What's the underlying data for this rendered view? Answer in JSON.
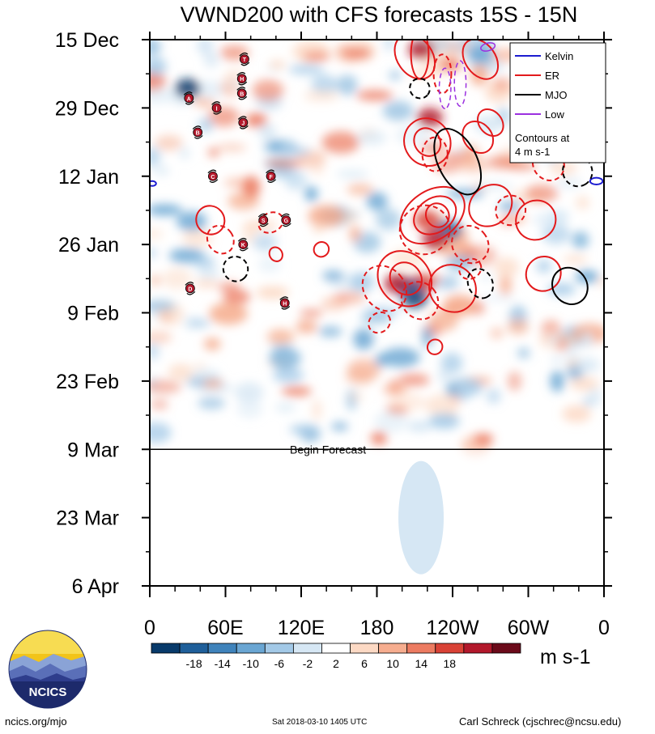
{
  "chart_data": {
    "type": "heatmap",
    "title": "VWND200 with CFS forecasts  15S - 15N",
    "y_tick_labels": [
      "15 Dec",
      "29 Dec",
      "12 Jan",
      "26 Jan",
      "9 Feb",
      "23 Feb",
      "9 Mar",
      "23 Mar",
      "6 Apr"
    ],
    "x_tick_labels": [
      "0",
      "60E",
      "120E",
      "180",
      "120W",
      "60W",
      "0"
    ],
    "x_range_deg": [
      0,
      360
    ],
    "y_range_days": [
      0,
      112
    ],
    "forecast_start_day": 84,
    "forecast_label": "Begin Forecast",
    "colorbar": {
      "tick_labels": [
        "-18",
        "-14",
        "-10",
        "-6",
        "-2",
        "2",
        "6",
        "10",
        "14",
        "18"
      ],
      "colors": [
        "#083a6a",
        "#1f5f9a",
        "#3f83bb",
        "#6aa6d3",
        "#a3c9e7",
        "#d6e7f4",
        "#ffffff",
        "#fcd9c4",
        "#f6ad8f",
        "#ec7b61",
        "#d94236",
        "#b2182b",
        "#6b0a1a"
      ],
      "units": "m s-1"
    },
    "legend": {
      "entries": [
        {
          "name": "Kelvin",
          "color": "#1c1cd0"
        },
        {
          "name": "ER",
          "color": "#e31a1c"
        },
        {
          "name": "MJO",
          "color": "#000000"
        },
        {
          "name": "Low",
          "color": "#9b30e0"
        }
      ],
      "note_line1": "Contours at",
      "note_line2": "4 m s-1"
    },
    "storm_markers": [
      {
        "label": "T",
        "lon": 75,
        "day": 4
      },
      {
        "label": "H",
        "lon": 73,
        "day": 8
      },
      {
        "label": "B",
        "lon": 73,
        "day": 11
      },
      {
        "label": "A",
        "lon": 31,
        "day": 12
      },
      {
        "label": "I",
        "lon": 53,
        "day": 14
      },
      {
        "label": "J",
        "lon": 74,
        "day": 17
      },
      {
        "label": "B",
        "lon": 38,
        "day": 19
      },
      {
        "label": "C",
        "lon": 50,
        "day": 28
      },
      {
        "label": "F",
        "lon": 96,
        "day": 28
      },
      {
        "label": "S",
        "lon": 90,
        "day": 37
      },
      {
        "label": "G",
        "lon": 108,
        "day": 37
      },
      {
        "label": "K",
        "lon": 74,
        "day": 42
      },
      {
        "label": "D",
        "lon": 32,
        "day": 51
      },
      {
        "label": "H",
        "lon": 107,
        "day": 54
      }
    ],
    "wave_contours": [
      {
        "type": "Kelvin",
        "lon": 354,
        "day": 29,
        "rx": 5,
        "ry": 0.7,
        "angle": 0,
        "dashed": false
      },
      {
        "type": "Kelvin",
        "lon": 2,
        "day": 29.5,
        "rx": 3,
        "ry": 0.5,
        "angle": 0,
        "dashed": false
      },
      {
        "type": "ER",
        "lon": 214,
        "day": 3,
        "rx": 7,
        "ry": 5,
        "angle": 0,
        "dashed": false
      },
      {
        "type": "ER",
        "lon": 210,
        "day": 3.5,
        "rx": 14,
        "ry": 5,
        "angle": -35,
        "dashed": false
      },
      {
        "type": "ER",
        "lon": 262,
        "day": 4,
        "rx": 12,
        "ry": 4.5,
        "angle": -35,
        "dashed": false
      },
      {
        "type": "ER",
        "lon": 232,
        "day": 7,
        "rx": 7,
        "ry": 4,
        "angle": 0,
        "dashed": true
      },
      {
        "type": "ER",
        "lon": 270,
        "day": 17,
        "rx": 9,
        "ry": 3,
        "angle": -40,
        "dashed": false
      },
      {
        "type": "ER",
        "lon": 220,
        "day": 21,
        "rx": 18,
        "ry": 5,
        "angle": -35,
        "dashed": false
      },
      {
        "type": "ER",
        "lon": 220,
        "day": 21,
        "rx": 10,
        "ry": 3,
        "angle": -35,
        "dashed": false
      },
      {
        "type": "ER",
        "lon": 260,
        "day": 20,
        "rx": 11,
        "ry": 3.5,
        "angle": -40,
        "dashed": false
      },
      {
        "type": "ER",
        "lon": 226,
        "day": 23.5,
        "rx": 10,
        "ry": 3.5,
        "angle": 0,
        "dashed": true
      },
      {
        "type": "ER",
        "lon": 316,
        "day": 25.5,
        "rx": 12,
        "ry": 3.5,
        "angle": -35,
        "dashed": true
      },
      {
        "type": "ER",
        "lon": 48,
        "day": 37,
        "rx": 11,
        "ry": 3,
        "angle": -40,
        "dashed": false
      },
      {
        "type": "ER",
        "lon": 56,
        "day": 41,
        "rx": 10,
        "ry": 3,
        "angle": -35,
        "dashed": true
      },
      {
        "type": "ER",
        "lon": 96,
        "day": 37.5,
        "rx": 10,
        "ry": 2,
        "angle": -25,
        "dashed": true
      },
      {
        "type": "ER",
        "lon": 100,
        "day": 44,
        "rx": 5,
        "ry": 1.5,
        "angle": -30,
        "dashed": false
      },
      {
        "type": "ER",
        "lon": 136,
        "day": 43,
        "rx": 6,
        "ry": 1.5,
        "angle": -35,
        "dashed": false
      },
      {
        "type": "ER",
        "lon": 224,
        "day": 36,
        "rx": 28,
        "ry": 5,
        "angle": -35,
        "dashed": false
      },
      {
        "type": "ER",
        "lon": 226,
        "day": 36,
        "rx": 18,
        "ry": 3.5,
        "angle": -35,
        "dashed": false
      },
      {
        "type": "ER",
        "lon": 228,
        "day": 36,
        "rx": 9,
        "ry": 2.5,
        "angle": -35,
        "dashed": false
      },
      {
        "type": "ER",
        "lon": 218,
        "day": 39,
        "rx": 20,
        "ry": 5,
        "angle": -30,
        "dashed": true
      },
      {
        "type": "ER",
        "lon": 270,
        "day": 34,
        "rx": 18,
        "ry": 4,
        "angle": -40,
        "dashed": false
      },
      {
        "type": "ER",
        "lon": 306,
        "day": 37,
        "rx": 16,
        "ry": 4,
        "angle": -40,
        "dashed": false
      },
      {
        "type": "ER",
        "lon": 254,
        "day": 42,
        "rx": 14,
        "ry": 4,
        "angle": -40,
        "dashed": true
      },
      {
        "type": "ER",
        "lon": 286,
        "day": 35,
        "rx": 12,
        "ry": 3,
        "angle": -40,
        "dashed": true
      },
      {
        "type": "ER",
        "lon": 202,
        "day": 49,
        "rx": 20,
        "ry": 6,
        "angle": -40,
        "dashed": false
      },
      {
        "type": "ER",
        "lon": 203,
        "day": 49,
        "rx": 12,
        "ry": 3.5,
        "angle": -40,
        "dashed": false
      },
      {
        "type": "ER",
        "lon": 240,
        "day": 51,
        "rx": 18,
        "ry": 5,
        "angle": -40,
        "dashed": false
      },
      {
        "type": "ER",
        "lon": 186,
        "day": 51,
        "rx": 16,
        "ry": 5,
        "angle": -40,
        "dashed": true
      },
      {
        "type": "ER",
        "lon": 214,
        "day": 53.5,
        "rx": 14,
        "ry": 4,
        "angle": -40,
        "dashed": true
      },
      {
        "type": "ER",
        "lon": 312,
        "day": 48,
        "rx": 14,
        "ry": 3.5,
        "angle": -40,
        "dashed": false
      },
      {
        "type": "ER",
        "lon": 254,
        "day": 47,
        "rx": 9,
        "ry": 2,
        "angle": -30,
        "dashed": true
      },
      {
        "type": "ER",
        "lon": 182,
        "day": 58,
        "rx": 9,
        "ry": 2,
        "angle": -35,
        "dashed": true
      },
      {
        "type": "ER",
        "lon": 226,
        "day": 63,
        "rx": 6,
        "ry": 1.5,
        "angle": -40,
        "dashed": false
      },
      {
        "type": "MJO",
        "lon": 244,
        "day": 25,
        "rx": 28,
        "ry": 4,
        "angle": 64,
        "dashed": false
      },
      {
        "type": "MJO",
        "lon": 339,
        "day": 27,
        "rx": 12,
        "ry": 3,
        "angle": 58,
        "dashed": true
      },
      {
        "type": "MJO",
        "lon": 68,
        "day": 47,
        "rx": 10,
        "ry": 2.5,
        "angle": 48,
        "dashed": true
      },
      {
        "type": "MJO",
        "lon": 262,
        "day": 50,
        "rx": 12,
        "ry": 2.5,
        "angle": 66,
        "dashed": true
      },
      {
        "type": "MJO",
        "lon": 333,
        "day": 50.5,
        "rx": 15,
        "ry": 3.5,
        "angle": 54,
        "dashed": false
      },
      {
        "type": "MJO",
        "lon": 214,
        "day": 10,
        "rx": 8,
        "ry": 2,
        "angle": 40,
        "dashed": true
      },
      {
        "type": "Low",
        "lon": 234,
        "day": 10,
        "rx": 16,
        "ry": 1.2,
        "angle": 90,
        "dashed": true
      },
      {
        "type": "Low",
        "lon": 246,
        "day": 9,
        "rx": 18,
        "ry": 1.2,
        "angle": 90,
        "dashed": true
      },
      {
        "type": "Low",
        "lon": 268,
        "day": 1.5,
        "rx": 3,
        "ry": 1.5,
        "angle": 75,
        "dashed": false
      }
    ]
  },
  "footer": {
    "left": "ncics.org/mjo",
    "center": "Sat 2018-03-10 1405 UTC",
    "right": "Carl Schreck (cjschrec@ncsu.edu)"
  },
  "logo": {
    "text": "NCICS"
  }
}
